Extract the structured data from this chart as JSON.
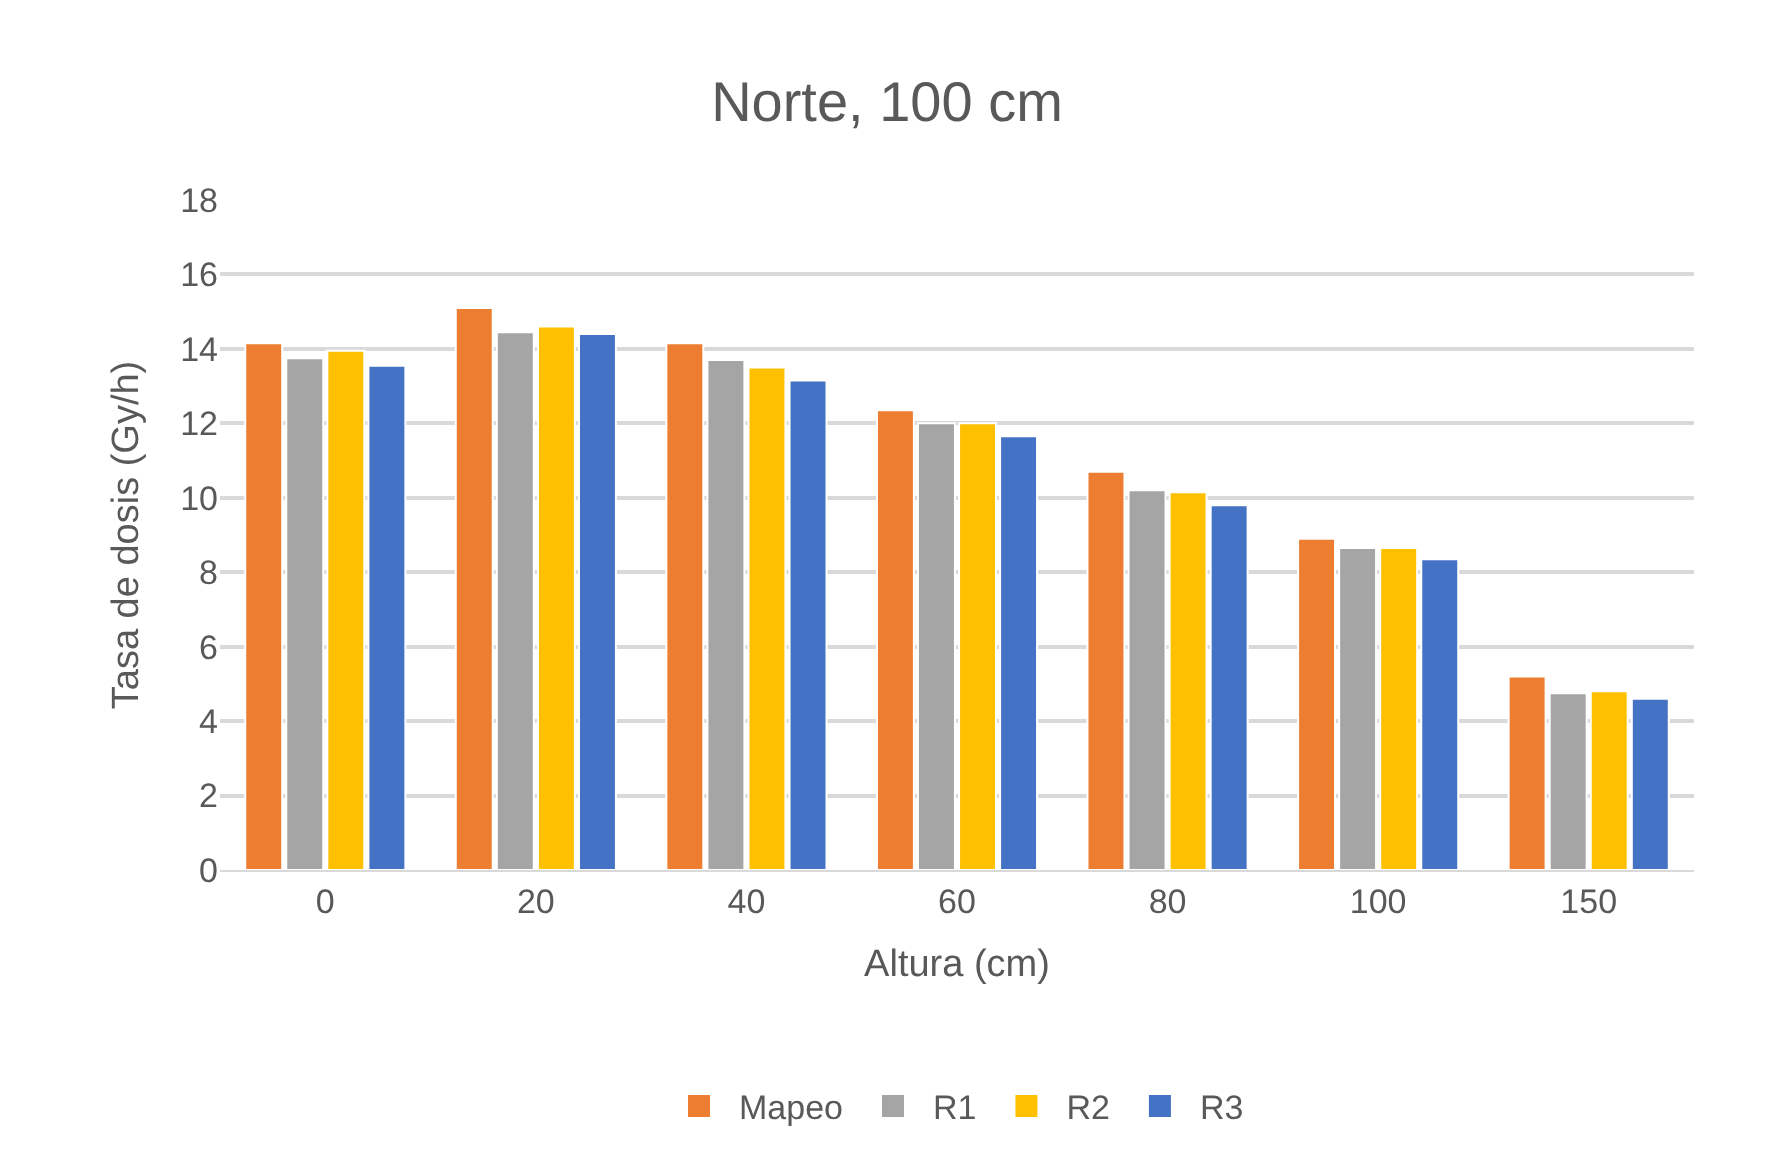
{
  "chart_data": {
    "type": "bar",
    "title": "Norte, 100 cm",
    "xlabel": "Altura (cm)",
    "ylabel": "Tasa de dosis (Gy/h)",
    "categories": [
      "0",
      "20",
      "40",
      "60",
      "80",
      "100",
      "150"
    ],
    "series": [
      {
        "name": "Mapeo",
        "color": "#ed7d31",
        "values": [
          14.15,
          15.1,
          14.15,
          12.35,
          10.7,
          8.9,
          5.2
        ]
      },
      {
        "name": "R1",
        "color": "#a5a5a5",
        "values": [
          13.75,
          14.45,
          13.7,
          12.0,
          10.2,
          8.65,
          4.75
        ]
      },
      {
        "name": "R2",
        "color": "#ffc000",
        "values": [
          13.95,
          14.6,
          13.5,
          12.0,
          10.15,
          8.65,
          4.8
        ]
      },
      {
        "name": "R3",
        "color": "#4472c4",
        "values": [
          13.55,
          14.4,
          13.15,
          11.65,
          9.8,
          8.35,
          4.6
        ]
      }
    ],
    "ylim": [
      0,
      18
    ],
    "yticks": [
      0,
      2,
      4,
      6,
      8,
      10,
      12,
      14,
      16,
      18
    ],
    "grid": "y",
    "legend": "bottom"
  }
}
